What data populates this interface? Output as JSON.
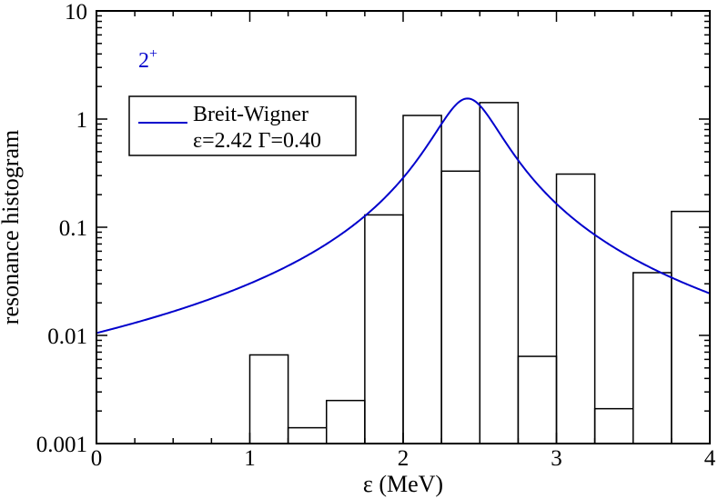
{
  "chart_data": {
    "type": "bar",
    "title": "",
    "xlabel": "ε (MeV)",
    "ylabel": "resonance histogram",
    "xlim": [
      0,
      4
    ],
    "ylim": [
      0.001,
      10
    ],
    "yscale": "log",
    "grid": false,
    "x_ticks": [
      "0",
      "1",
      "2",
      "3",
      "4"
    ],
    "y_ticks": [
      "0.001",
      "0.01",
      "0.1",
      "1",
      "10"
    ],
    "annotation": {
      "base": "2",
      "superscript": "+"
    },
    "histogram": {
      "bin_width": 0.25,
      "bins": [
        {
          "x0": 1.0,
          "value": 0.0066
        },
        {
          "x0": 1.25,
          "value": 0.0014
        },
        {
          "x0": 1.5,
          "value": 0.0025
        },
        {
          "x0": 1.75,
          "value": 0.13
        },
        {
          "x0": 2.0,
          "value": 1.08
        },
        {
          "x0": 2.25,
          "value": 0.33
        },
        {
          "x0": 2.5,
          "value": 1.42
        },
        {
          "x0": 2.75,
          "value": 0.0064
        },
        {
          "x0": 3.0,
          "value": 0.31
        },
        {
          "x0": 3.25,
          "value": 0.0021
        },
        {
          "x0": 3.5,
          "value": 0.038
        },
        {
          "x0": 3.75,
          "value": 0.14
        }
      ],
      "color": "#000000"
    },
    "series": [
      {
        "name": "Breit-Wigner",
        "type": "line",
        "color": "#0000cc",
        "legend_line2": "ε=2.42 Γ=0.40",
        "params": {
          "E0": 2.42,
          "Gamma": 0.4,
          "peak": 1.55
        }
      }
    ],
    "legend": {
      "position": "top-left"
    }
  }
}
